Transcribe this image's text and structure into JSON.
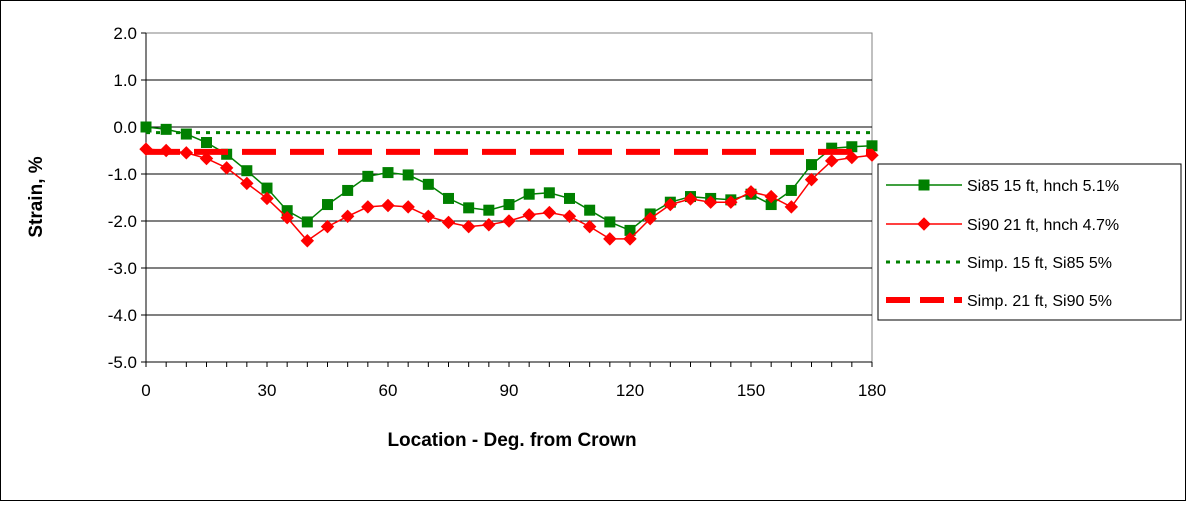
{
  "chart_data": {
    "type": "line",
    "title": "",
    "xlabel": "Location - Deg. from Crown",
    "ylabel": "Strain, %",
    "xlim": [
      0,
      180
    ],
    "ylim": [
      -5.0,
      2.0
    ],
    "xticks": [
      0,
      30,
      60,
      90,
      120,
      150,
      180
    ],
    "xtick_labels": [
      "0",
      "30",
      "60",
      "90",
      "120",
      "150",
      "180"
    ],
    "yticks": [
      2.0,
      1.0,
      0.0,
      -1.0,
      -2.0,
      -3.0,
      -4.0,
      -5.0
    ],
    "ytick_labels": [
      "2.0",
      "1.0",
      "0.0",
      "-1.0",
      "-2.0",
      "-3.0",
      "-4.0",
      "-5.0"
    ],
    "grid": "horizontal",
    "legend_position": "right",
    "series": [
      {
        "name": "Si85 15 ft, hnch 5.1%",
        "color": "#008000",
        "style": "line-square-markers",
        "x": [
          0,
          5,
          10,
          15,
          20,
          25,
          30,
          35,
          40,
          45,
          50,
          55,
          60,
          65,
          70,
          75,
          80,
          85,
          90,
          95,
          100,
          105,
          110,
          115,
          120,
          125,
          130,
          135,
          140,
          145,
          150,
          155,
          160,
          165,
          170,
          175,
          180
        ],
        "y": [
          0.0,
          -0.05,
          -0.15,
          -0.33,
          -0.58,
          -0.93,
          -1.3,
          -1.78,
          -2.02,
          -1.65,
          -1.35,
          -1.05,
          -0.97,
          -1.02,
          -1.22,
          -1.52,
          -1.72,
          -1.77,
          -1.65,
          -1.43,
          -1.4,
          -1.52,
          -1.77,
          -2.02,
          -2.2,
          -1.85,
          -1.6,
          -1.48,
          -1.52,
          -1.55,
          -1.43,
          -1.65,
          -1.35,
          -0.8,
          -0.45,
          -0.42,
          -0.4
        ]
      },
      {
        "name": "Si90 21 ft, hnch 4.7%",
        "color": "#ff0000",
        "style": "line-diamond-markers",
        "x": [
          0,
          5,
          10,
          15,
          20,
          25,
          30,
          35,
          40,
          45,
          50,
          55,
          60,
          65,
          70,
          75,
          80,
          85,
          90,
          95,
          100,
          105,
          110,
          115,
          120,
          125,
          130,
          135,
          140,
          145,
          150,
          155,
          160,
          165,
          170,
          175,
          180
        ],
        "y": [
          -0.47,
          -0.5,
          -0.55,
          -0.67,
          -0.87,
          -1.2,
          -1.52,
          -1.93,
          -2.42,
          -2.12,
          -1.9,
          -1.7,
          -1.67,
          -1.7,
          -1.9,
          -2.03,
          -2.12,
          -2.08,
          -2.0,
          -1.87,
          -1.82,
          -1.9,
          -2.12,
          -2.38,
          -2.38,
          -1.95,
          -1.65,
          -1.53,
          -1.6,
          -1.6,
          -1.38,
          -1.48,
          -1.7,
          -1.12,
          -0.72,
          -0.65,
          -0.6
        ]
      },
      {
        "name": "Simp. 15 ft, Si85 5%",
        "color": "#008000",
        "style": "dotted-line",
        "x": [
          0,
          180
        ],
        "y": [
          -0.12,
          -0.12
        ]
      },
      {
        "name": "Simp. 21 ft, Si90 5%",
        "color": "#ff0000",
        "style": "thick-dashed-line",
        "x": [
          0,
          180
        ],
        "y": [
          -0.53,
          -0.53
        ]
      }
    ]
  }
}
